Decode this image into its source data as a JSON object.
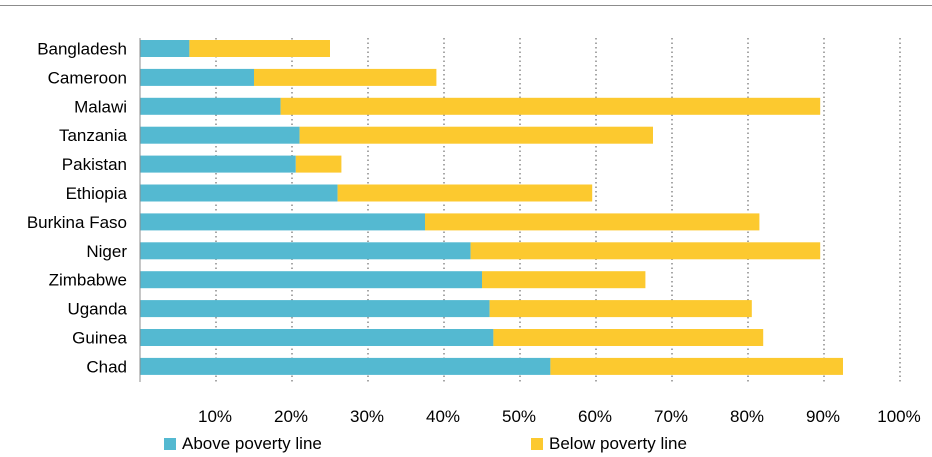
{
  "chart_data": {
    "type": "bar",
    "orientation": "horizontal",
    "stacked": true,
    "categories": [
      "Bangladesh",
      "Cameroon",
      "Malawi",
      "Tanzania",
      "Pakistan",
      "Ethiopia",
      "Burkina Faso",
      "Niger",
      "Zimbabwe",
      "Uganda",
      "Guinea",
      "Chad"
    ],
    "series": [
      {
        "name": "Above poverty line",
        "color": "#54b9d1",
        "values": [
          6.5,
          15,
          18.5,
          21,
          20.5,
          26,
          37.5,
          43.5,
          45,
          46,
          46.5,
          54
        ]
      },
      {
        "name": "Below poverty line",
        "color": "#fcc92f",
        "values": [
          18.5,
          24,
          71,
          46.5,
          6,
          33.5,
          44,
          46,
          21.5,
          34.5,
          35.5,
          38.5
        ]
      }
    ],
    "x_ticks": [
      "10%",
      "20%",
      "30%",
      "40%",
      "50%",
      "60%",
      "70%",
      "80%",
      "90%",
      "100%"
    ],
    "xlim": [
      0,
      100
    ],
    "grid": "vertical-dotted",
    "legend": "bottom"
  }
}
